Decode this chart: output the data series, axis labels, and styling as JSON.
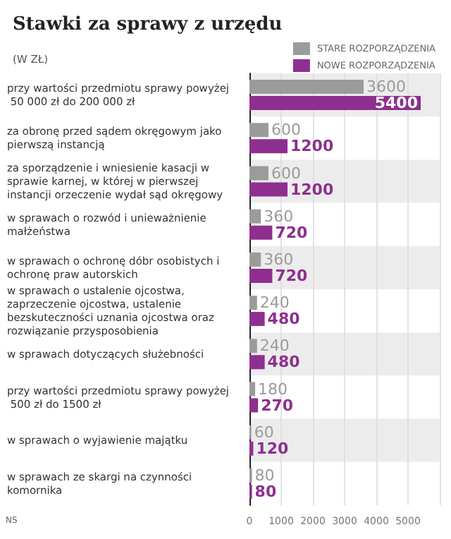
{
  "chart_data": {
    "type": "bar",
    "orientation": "horizontal",
    "title": "Stawki za sprawy z urzędu",
    "subtitle": "(W ZŁ)",
    "categories": [
      "przy wartości przedmiotu sprawy powyżej 50 000 zł do 200 000 zł",
      "za obronę przed sądem okręgowym jako pierwszą instancją",
      "za sporządzenie i wniesienie kasacji w sprawie karnej, w której w pierwszej instancji orzeczenie wydał sąd okręgowy",
      "w sprawach o rozwód i unieważnienie małżeństwa",
      "w sprawach o ochronę dóbr osobistych i ochronę praw autorskich",
      "w sprawach o ustalenie ojcostwa, zaprzeczenie ojcostwa, ustalenie bezskuteczności uznania ojcostwa oraz rozwiązanie przysposobienia",
      "w sprawach dotyczących służebności",
      "przy wartości przedmiotu sprawy powyżej 500 zł do 1500 zł",
      "w sprawach o wyjawienie majątku",
      "w sprawach ze skargi na czynności komornika"
    ],
    "series": [
      {
        "name": "STARE ROZPORZĄDZENIA",
        "color": "#9b9b9b",
        "values": [
          3600,
          600,
          600,
          360,
          360,
          240,
          240,
          180,
          60,
          80
        ]
      },
      {
        "name": "NOWE ROZPORZĄDZENIA",
        "color": "#8e2f8f",
        "values": [
          5400,
          1200,
          1200,
          720,
          720,
          480,
          480,
          270,
          120,
          80
        ]
      }
    ],
    "xlim": [
      0,
      6000
    ],
    "xticks": [
      0,
      1000,
      2000,
      3000,
      4000,
      5000
    ],
    "grid": "x",
    "legend": "top right",
    "data_labels": true,
    "annotations": [
      "NS"
    ]
  }
}
